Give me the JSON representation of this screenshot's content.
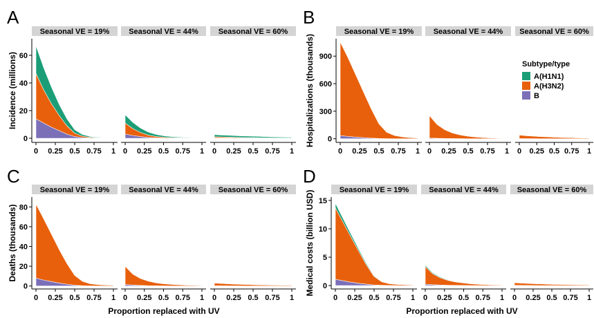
{
  "colors": {
    "A(H1N1)": "#1b9e77",
    "A(H3N2)": "#e8600c",
    "B": "#7b6fb8",
    "strip_bg": "#d4d4d4"
  },
  "legend": {
    "title": "Subtype/type",
    "entries": [
      "A(H1N1)",
      "A(H3N2)",
      "B"
    ]
  },
  "x_axis_title": "Proportion replaced with UV",
  "chart_data": [
    {
      "panel": "A",
      "type": "area",
      "ylabel": "Incidence (millions)",
      "ylim": [
        -3,
        72
      ],
      "yticks": [
        0,
        20,
        40,
        60
      ],
      "x": [
        0,
        0.1,
        0.2,
        0.3,
        0.4,
        0.5,
        0.6,
        0.7,
        0.8,
        0.9,
        1
      ],
      "xtick_labels": [
        "0",
        "0.25",
        "0.5",
        "0.75",
        "1"
      ],
      "stack_order": [
        "B",
        "A(H3N2)",
        "A(H1N1)"
      ],
      "facets": [
        {
          "label": "Seasonal VE = 19%",
          "series": [
            {
              "name": "B",
              "values": [
                14,
                11,
                8,
                5.5,
                3,
                1.2,
                0.5,
                0.2,
                0.1,
                0.05,
                0
              ]
            },
            {
              "name": "A(H3N2)",
              "values": [
                33,
                24,
                17,
                11,
                6,
                2.5,
                1,
                0.5,
                0.3,
                0.2,
                0.1
              ]
            },
            {
              "name": "A(H1N1)",
              "values": [
                20,
                16,
                12,
                8,
                5,
                2.5,
                1.2,
                0.6,
                0.4,
                0.3,
                0.3
              ]
            }
          ]
        },
        {
          "label": "Seasonal VE = 44%",
          "series": [
            {
              "name": "B",
              "values": [
                3,
                2,
                1.2,
                0.6,
                0.3,
                0.15,
                0.1,
                0.05,
                0,
                0,
                0
              ]
            },
            {
              "name": "A(H3N2)",
              "values": [
                8,
                5,
                3,
                1.7,
                1,
                0.6,
                0.4,
                0.3,
                0.2,
                0.1,
                0.1
              ]
            },
            {
              "name": "A(H1N1)",
              "values": [
                6,
                4.5,
                3.2,
                2.2,
                1.5,
                1,
                0.7,
                0.5,
                0.4,
                0.3,
                0.3
              ]
            }
          ]
        },
        {
          "label": "Seasonal VE = 60%",
          "series": [
            {
              "name": "B",
              "values": [
                0.3,
                0.2,
                0.2,
                0.1,
                0.1,
                0.1,
                0.05,
                0,
                0,
                0,
                0
              ]
            },
            {
              "name": "A(H3N2)",
              "values": [
                0.8,
                0.7,
                0.6,
                0.5,
                0.4,
                0.35,
                0.3,
                0.25,
                0.2,
                0.2,
                0.2
              ]
            },
            {
              "name": "A(H1N1)",
              "values": [
                1.5,
                1.4,
                1.3,
                1.2,
                1.1,
                1,
                0.9,
                0.8,
                0.7,
                0.6,
                0.5
              ]
            }
          ]
        }
      ]
    },
    {
      "panel": "B",
      "type": "area",
      "ylabel": "Hospitalizations (thousands)",
      "ylim": [
        -40,
        1090
      ],
      "yticks": [
        0,
        300,
        600,
        900
      ],
      "x": [
        0,
        0.1,
        0.2,
        0.3,
        0.4,
        0.5,
        0.6,
        0.7,
        0.8,
        0.9,
        1
      ],
      "xtick_labels": [
        "0",
        "0.25",
        "0.5",
        "0.75",
        "1"
      ],
      "stack_order": [
        "B",
        "A(H3N2)",
        "A(H1N1)"
      ],
      "facets": [
        {
          "label": "Seasonal VE = 19%",
          "series": [
            {
              "name": "B",
              "values": [
                35,
                25,
                18,
                12,
                7,
                3,
                1,
                0.5,
                0.2,
                0.1,
                0
              ]
            },
            {
              "name": "A(H3N2)",
              "values": [
                1020,
                860,
                680,
                500,
                320,
                160,
                70,
                35,
                20,
                12,
                8
              ]
            },
            {
              "name": "A(H1N1)",
              "values": [
                8,
                6,
                5,
                4,
                3,
                2,
                1,
                1,
                0.5,
                0.5,
                0.5
              ]
            }
          ]
        },
        {
          "label": "Seasonal VE = 44%",
          "series": [
            {
              "name": "B",
              "values": [
                8,
                5,
                3,
                2,
                1,
                0.5,
                0.3,
                0.1,
                0,
                0,
                0
              ]
            },
            {
              "name": "A(H3N2)",
              "values": [
                245,
                150,
                95,
                60,
                40,
                27,
                18,
                12,
                8,
                6,
                4
              ]
            },
            {
              "name": "A(H1N1)",
              "values": [
                3,
                2,
                2,
                1,
                1,
                1,
                0.5,
                0.5,
                0.5,
                0.5,
                0.5
              ]
            }
          ]
        },
        {
          "label": "Seasonal VE = 60%",
          "series": [
            {
              "name": "B",
              "values": [
                2,
                1,
                1,
                0.5,
                0.3,
                0.2,
                0.1,
                0,
                0,
                0,
                0
              ]
            },
            {
              "name": "A(H3N2)",
              "values": [
                38,
                32,
                27,
                23,
                20,
                17,
                14,
                12,
                10,
                8,
                7
              ]
            },
            {
              "name": "A(H1N1)",
              "values": [
                1,
                1,
                1,
                0.5,
                0.5,
                0.5,
                0.5,
                0.5,
                0.5,
                0.5,
                0.5
              ]
            }
          ]
        }
      ]
    },
    {
      "panel": "C",
      "type": "area",
      "ylabel": "Deaths (thousands)",
      "ylim": [
        -3,
        90
      ],
      "yticks": [
        0,
        20,
        40,
        60,
        80
      ],
      "x": [
        0,
        0.1,
        0.2,
        0.3,
        0.4,
        0.5,
        0.6,
        0.7,
        0.8,
        0.9,
        1
      ],
      "xtick_labels": [
        "0",
        "0.25",
        "0.5",
        "0.75",
        "1"
      ],
      "stack_order": [
        "B",
        "A(H3N2)",
        "A(H1N1)"
      ],
      "facets": [
        {
          "label": "Seasonal VE = 19%",
          "series": [
            {
              "name": "B",
              "values": [
                8,
                6,
                4.5,
                3,
                1.8,
                0.8,
                0.3,
                0.1,
                0.05,
                0,
                0
              ]
            },
            {
              "name": "A(H3N2)",
              "values": [
                75,
                62,
                48,
                34,
                21,
                10,
                4.5,
                2.2,
                1.4,
                1,
                0.8
              ]
            },
            {
              "name": "A(H1N1)",
              "values": [
                0.5,
                0.4,
                0.3,
                0.2,
                0.15,
                0.1,
                0.05,
                0.05,
                0.05,
                0.05,
                0.05
              ]
            }
          ]
        },
        {
          "label": "Seasonal VE = 44%",
          "series": [
            {
              "name": "B",
              "values": [
                1.5,
                1,
                0.6,
                0.3,
                0.2,
                0.1,
                0.05,
                0,
                0,
                0,
                0
              ]
            },
            {
              "name": "A(H3N2)",
              "values": [
                18.5,
                11,
                7,
                4.7,
                3,
                2.2,
                1.6,
                1.2,
                0.9,
                0.7,
                0.5
              ]
            },
            {
              "name": "A(H1N1)",
              "values": [
                0.2,
                0.15,
                0.1,
                0.1,
                0.05,
                0.05,
                0.05,
                0.05,
                0.05,
                0.05,
                0.05
              ]
            }
          ]
        },
        {
          "label": "Seasonal VE = 60%",
          "series": [
            {
              "name": "B",
              "values": [
                0.3,
                0.2,
                0.1,
                0.1,
                0.05,
                0,
                0,
                0,
                0,
                0,
                0
              ]
            },
            {
              "name": "A(H3N2)",
              "values": [
                2.7,
                2.3,
                2,
                1.7,
                1.5,
                1.3,
                1.1,
                1,
                0.9,
                0.8,
                0.7
              ]
            },
            {
              "name": "A(H1N1)",
              "values": [
                0.1,
                0.1,
                0.1,
                0.05,
                0.05,
                0.05,
                0.05,
                0.05,
                0.05,
                0.05,
                0.05
              ]
            }
          ]
        }
      ]
    },
    {
      "panel": "D",
      "type": "area",
      "ylabel": "Medical costs (billion USD)",
      "ylim": [
        -0.6,
        15.6
      ],
      "yticks": [
        0,
        5,
        10,
        15
      ],
      "x": [
        0,
        0.1,
        0.2,
        0.3,
        0.4,
        0.5,
        0.6,
        0.7,
        0.8,
        0.9,
        1
      ],
      "xtick_labels": [
        "0",
        "0.25",
        "0.5",
        "0.75",
        "1"
      ],
      "stack_order": [
        "B",
        "A(H3N2)",
        "A(H1N1)"
      ],
      "facets": [
        {
          "label": "Seasonal VE = 19%",
          "series": [
            {
              "name": "B",
              "values": [
                1.1,
                0.85,
                0.6,
                0.4,
                0.25,
                0.1,
                0.05,
                0.02,
                0,
                0,
                0
              ]
            },
            {
              "name": "A(H3N2)",
              "values": [
                12.6,
                10.3,
                8,
                5.7,
                3.4,
                1.5,
                0.6,
                0.3,
                0.2,
                0.15,
                0.1
              ]
            },
            {
              "name": "A(H1N1)",
              "values": [
                0.8,
                0.65,
                0.5,
                0.35,
                0.25,
                0.12,
                0.06,
                0.04,
                0.03,
                0.02,
                0.02
              ]
            }
          ]
        },
        {
          "label": "Seasonal VE = 44%",
          "series": [
            {
              "name": "B",
              "values": [
                0.25,
                0.15,
                0.1,
                0.05,
                0.03,
                0.02,
                0.01,
                0,
                0,
                0,
                0
              ]
            },
            {
              "name": "A(H3N2)",
              "values": [
                3.1,
                1.9,
                1.25,
                0.85,
                0.6,
                0.43,
                0.3,
                0.22,
                0.16,
                0.12,
                0.09
              ]
            },
            {
              "name": "A(H1N1)",
              "values": [
                0.25,
                0.17,
                0.12,
                0.09,
                0.06,
                0.04,
                0.03,
                0.02,
                0.02,
                0.01,
                0.01
              ]
            }
          ]
        },
        {
          "label": "Seasonal VE = 60%",
          "series": [
            {
              "name": "B",
              "values": [
                0.05,
                0.03,
                0.02,
                0.01,
                0.01,
                0,
                0,
                0,
                0,
                0,
                0
              ]
            },
            {
              "name": "A(H3N2)",
              "values": [
                0.45,
                0.4,
                0.35,
                0.3,
                0.26,
                0.22,
                0.19,
                0.17,
                0.15,
                0.13,
                0.12
              ]
            },
            {
              "name": "A(H1N1)",
              "values": [
                0.03,
                0.03,
                0.02,
                0.02,
                0.02,
                0.01,
                0.01,
                0.01,
                0.01,
                0.01,
                0.01
              ]
            }
          ]
        }
      ]
    }
  ]
}
